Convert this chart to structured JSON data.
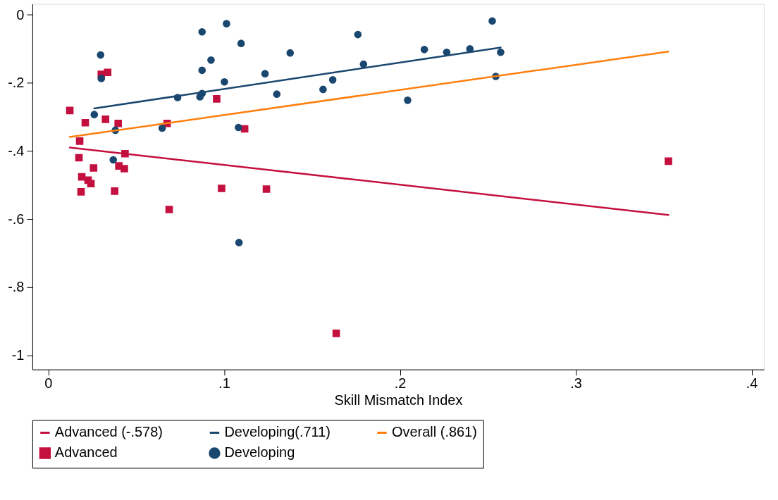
{
  "chart_data": {
    "type": "scatter",
    "xlabel": "Skill Mismatch Index",
    "xlim": [
      -0.009,
      0.407
    ],
    "ylim": [
      -1.042,
      0.032
    ],
    "xticks": [
      {
        "value": 0,
        "label": "0"
      },
      {
        "value": 0.1,
        "label": ".1"
      },
      {
        "value": 0.2,
        "label": ".2"
      },
      {
        "value": 0.3,
        "label": ".3"
      },
      {
        "value": 0.4,
        "label": ".4"
      }
    ],
    "yticks": [
      {
        "value": -1,
        "label": "-1"
      },
      {
        "value": -0.8,
        "label": "-.8"
      },
      {
        "value": -0.6,
        "label": "-.6"
      },
      {
        "value": -0.4,
        "label": "-.4"
      },
      {
        "value": -0.2,
        "label": "-.2"
      },
      {
        "value": 0,
        "label": "0"
      }
    ],
    "grid": false,
    "legend": "bottom",
    "series": [
      {
        "name": "Advanced (-.578)",
        "type": "line",
        "color": "#c4103f",
        "line_style": "solid",
        "x": [
          0.0123,
          0.3527
        ],
        "values": [
          -0.39,
          -0.588
        ]
      },
      {
        "name": "Developing(.711)",
        "type": "line",
        "color": "#1a476f",
        "line_style": "solid",
        "x": [
          0.0262,
          0.2573
        ],
        "values": [
          -0.275,
          -0.096
        ]
      },
      {
        "name": "Overall (.861)",
        "type": "line",
        "color": "#ff7f0e",
        "line_style": "solid",
        "x": [
          0.0123,
          0.3527
        ],
        "values": [
          -0.359,
          -0.108
        ]
      },
      {
        "name": "Advanced",
        "color": "#c4103f",
        "marker": "square",
        "x": [
          0.0123,
          0.0302,
          0.0338,
          0.0211,
          0.0179,
          0.0175,
          0.0191,
          0.0227,
          0.0243,
          0.0258,
          0.0187,
          0.0326,
          0.0398,
          0.0437,
          0.0402,
          0.0433,
          0.0378,
          0.0676,
          0.0688,
          0.0958,
          0.0986,
          0.1117,
          0.1241,
          0.1638,
          0.3527
        ],
        "values": [
          -0.281,
          -0.175,
          -0.169,
          -0.317,
          -0.371,
          -0.42,
          -0.476,
          -0.486,
          -0.496,
          -0.45,
          -0.52,
          -0.307,
          -0.319,
          -0.408,
          -0.444,
          -0.452,
          -0.518,
          -0.319,
          -0.572,
          -0.247,
          -0.51,
          -0.335,
          -0.512,
          -0.936,
          -0.43
        ]
      },
      {
        "name": "Developing",
        "color": "#1a476f",
        "marker": "circle",
        "x": [
          0.0298,
          0.0302,
          0.0262,
          0.0382,
          0.037,
          0.0648,
          0.0736,
          0.0875,
          0.0875,
          0.0875,
          0.0863,
          0.0926,
          0.1014,
          0.1002,
          0.1097,
          0.1082,
          0.1085,
          0.1233,
          0.13,
          0.1376,
          0.1563,
          0.1618,
          0.1761,
          0.1793,
          0.2044,
          0.2139,
          0.2266,
          0.2398,
          0.2525,
          0.2545,
          0.2573
        ],
        "values": [
          -0.118,
          -0.187,
          -0.293,
          -0.339,
          -0.426,
          -0.333,
          -0.243,
          -0.05,
          -0.163,
          -0.231,
          -0.241,
          -0.133,
          -0.026,
          -0.197,
          -0.084,
          -0.331,
          -0.669,
          -0.173,
          -0.233,
          -0.112,
          -0.219,
          -0.191,
          -0.058,
          -0.145,
          -0.251,
          -0.102,
          -0.11,
          -0.1,
          -0.018,
          -0.181,
          -0.11
        ]
      }
    ]
  }
}
